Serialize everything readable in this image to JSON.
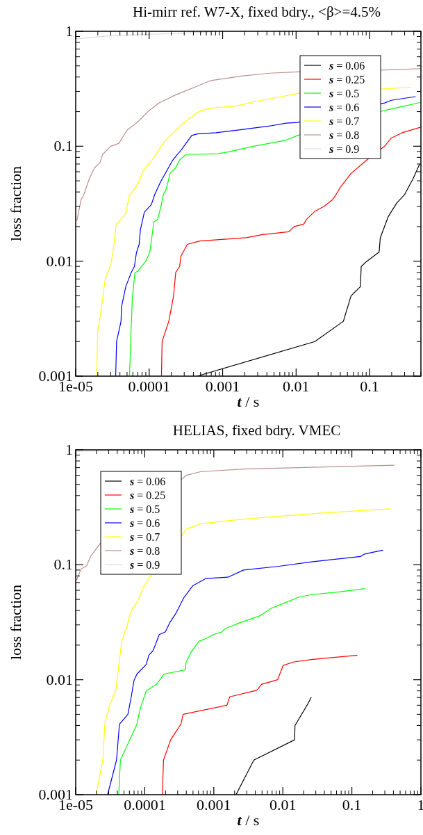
{
  "chart_data": [
    {
      "type": "line",
      "title": "Hi-mirr ref. W7-X, fixed bdry., <β>=4.5%",
      "xlabel": "t / s",
      "ylabel": "loss fraction",
      "log": "xy",
      "legend": "top right",
      "xlim": [
        1e-05,
        0.5
      ],
      "ylim": [
        0.001,
        1
      ],
      "xticks": [
        {
          "value": 1e-05,
          "label": "1e-05"
        },
        0.0001,
        0.001,
        0.01,
        0.1
      ],
      "yticks": [
        0.001,
        0.01,
        0.1,
        1
      ],
      "series": [
        {
          "name": "s = 0.06",
          "color": "#000000",
          "x": [
            0.00045,
            0.018,
            0.044,
            0.051,
            0.056,
            0.075,
            0.077,
            0.092,
            0.135,
            0.14,
            0.18,
            0.234,
            0.3,
            0.39,
            0.48
          ],
          "values": [
            0.001,
            0.002,
            0.003,
            0.0041,
            0.005,
            0.006,
            0.009,
            0.01,
            0.012,
            0.016,
            0.0245,
            0.032,
            0.038,
            0.052,
            0.07
          ]
        },
        {
          "name": "s = 0.25",
          "color": "#ff0000",
          "x": [
            0.000147,
            0.00015,
            0.000185,
            0.000215,
            0.00023,
            0.00026,
            0.00027,
            0.00033,
            0.00049,
            0.0021,
            0.0034,
            0.0079,
            0.0094,
            0.0127,
            0.0138,
            0.0178,
            0.024,
            0.031,
            0.035,
            0.04,
            0.056,
            0.092,
            0.16,
            0.198,
            0.278,
            0.49
          ],
          "values": [
            0.001,
            0.002,
            0.003,
            0.005,
            0.008,
            0.009,
            0.011,
            0.014,
            0.015,
            0.016,
            0.017,
            0.018,
            0.02,
            0.021,
            0.023,
            0.027,
            0.03,
            0.034,
            0.038,
            0.044,
            0.058,
            0.076,
            0.1,
            0.118,
            0.131,
            0.146
          ]
        },
        {
          "name": "s = 0.5",
          "color": "#00ff00",
          "x": [
            5.4e-05,
            5.6e-05,
            5.9e-05,
            6.4e-05,
            7e-05,
            9e-05,
            0.000102,
            0.000116,
            0.00013,
            0.000143,
            0.000156,
            0.00017,
            0.000193,
            0.00023,
            0.00026,
            0.00032,
            0.00041,
            0.00088,
            0.00124,
            0.00265,
            0.0073,
            0.0105,
            0.16,
            0.255,
            0.49
          ],
          "values": [
            0.001,
            0.002,
            0.0048,
            0.0079,
            0.0082,
            0.01,
            0.012,
            0.022,
            0.023,
            0.029,
            0.038,
            0.042,
            0.058,
            0.065,
            0.076,
            0.085,
            0.085,
            0.086,
            0.0897,
            0.1,
            0.113,
            0.124,
            0.205,
            0.219,
            0.24
          ]
        },
        {
          "name": "s = 0.6",
          "color": "#0000ff",
          "x": [
            3.5e-05,
            3.6e-05,
            4.14e-05,
            4.2e-05,
            4.8e-05,
            5.66e-05,
            6.3e-05,
            6.7e-05,
            7.3e-05,
            7.6e-05,
            8.6e-05,
            0.000107,
            0.000119,
            0.000143,
            0.00021,
            0.00027,
            0.00038,
            0.00045,
            0.00081,
            0.0016,
            0.0044,
            0.0073,
            0.0105,
            0.16,
            0.198,
            0.42
          ],
          "values": [
            0.001,
            0.002,
            0.003,
            0.004,
            0.006,
            0.0079,
            0.009,
            0.0118,
            0.014,
            0.0188,
            0.0267,
            0.031,
            0.038,
            0.049,
            0.076,
            0.092,
            0.124,
            0.128,
            0.131,
            0.138,
            0.15,
            0.159,
            0.161,
            0.238,
            0.251,
            0.27
          ]
        },
        {
          "name": "s = 0.7",
          "color": "#ffff00",
          "x": [
            1.93e-05,
            2e-05,
            2.14e-05,
            2.33e-05,
            2.53e-05,
            3e-05,
            3.27e-05,
            3.55e-05,
            3.87e-05,
            4.8e-05,
            5.4e-05,
            5.9e-05,
            7e-05,
            8.3e-05,
            0.000116,
            0.000163,
            0.00023,
            0.00032,
            0.00049,
            0.00069,
            0.0016,
            0.0027,
            0.0067,
            0.0105,
            0.16,
            0.358
          ],
          "values": [
            0.001,
            0.0025,
            0.0032,
            0.0048,
            0.0071,
            0.0093,
            0.0128,
            0.021,
            0.022,
            0.026,
            0.038,
            0.04,
            0.047,
            0.061,
            0.08,
            0.111,
            0.138,
            0.167,
            0.202,
            0.214,
            0.225,
            0.244,
            0.272,
            0.288,
            0.315,
            0.326
          ]
        },
        {
          "name": "s = 0.8",
          "color": "#bc8f8f",
          "x": [
            1.04e-05,
            1.18e-05,
            1.29e-05,
            1.53e-05,
            1.81e-05,
            2.14e-05,
            2.33e-05,
            3e-05,
            3.87e-05,
            5e-05,
            7e-05,
            9.8e-05,
            0.000137,
            0.00023,
            0.00045,
            0.00069,
            0.0019,
            0.0044,
            0.0105,
            0.16,
            0.49
          ],
          "values": [
            0.0226,
            0.034,
            0.038,
            0.052,
            0.065,
            0.072,
            0.085,
            0.1,
            0.106,
            0.138,
            0.163,
            0.202,
            0.238,
            0.28,
            0.333,
            0.373,
            0.409,
            0.432,
            0.444,
            0.461,
            0.473
          ]
        },
        {
          "name": "s = 0.9",
          "color": "#dcdcdc",
          "x": [
            1.04e-05,
            2.75e-05,
            9.8e-05,
            0.00041,
            0.00069
          ],
          "values": [
            0.86,
            0.912,
            0.94,
            0.97,
            0.99
          ]
        }
      ]
    },
    {
      "type": "line",
      "title": "HELIAS, fixed bdry. VMEC",
      "xlabel": "t / s",
      "ylabel": "loss fraction",
      "log": "xy",
      "legend": "top left",
      "xlim": [
        1e-05,
        1
      ],
      "ylim": [
        0.001,
        1
      ],
      "xticks": [
        {
          "value": 1e-05,
          "label": "1e-05"
        },
        0.0001,
        0.001,
        0.01,
        0.1,
        1
      ],
      "yticks": [
        0.001,
        0.01,
        0.1,
        1
      ],
      "series": [
        {
          "name": "s = 0.06",
          "color": "#000000",
          "x": [
            0.0021,
            0.0038,
            0.0148,
            0.015,
            0.0228,
            0.0257
          ],
          "values": [
            0.001,
            0.002,
            0.003,
            0.004,
            0.0061,
            0.007
          ]
        },
        {
          "name": "s = 0.25",
          "color": "#ff0000",
          "x": [
            0.00018,
            0.000187,
            0.000237,
            0.000334,
            0.00036,
            0.00155,
            0.0017,
            0.0042,
            0.0049,
            0.0084,
            0.0101,
            0.0145,
            0.026,
            0.119
          ],
          "values": [
            0.001,
            0.002,
            0.003,
            0.0041,
            0.005,
            0.006,
            0.0071,
            0.0081,
            0.0091,
            0.01,
            0.0133,
            0.0143,
            0.015,
            0.0163
          ]
        },
        {
          "name": "s = 0.5",
          "color": "#00ff00",
          "x": [
            4.2e-05,
            4.44e-05,
            7.7e-05,
            8.6e-05,
            0.000105,
            0.00015,
            0.00019,
            0.00039,
            0.000394,
            0.00047,
            0.00061,
            0.00077,
            0.001,
            0.0013,
            0.00144,
            0.0023,
            0.0047,
            0.0067,
            0.0101,
            0.0166,
            0.026,
            0.065,
            0.152
          ],
          "values": [
            0.001,
            0.002,
            0.0041,
            0.0056,
            0.008,
            0.0092,
            0.0112,
            0.0122,
            0.014,
            0.0174,
            0.0216,
            0.0228,
            0.0248,
            0.026,
            0.0277,
            0.031,
            0.036,
            0.0416,
            0.046,
            0.052,
            0.055,
            0.058,
            0.062
          ]
        },
        {
          "name": "s = 0.6",
          "color": "#0000ff",
          "x": [
            2.9e-05,
            3.9e-05,
            4.3e-05,
            5.7e-05,
            6.4e-05,
            7e-05,
            7.7e-05,
            0.000105,
            0.000115,
            0.000131,
            0.000144,
            0.000162,
            0.000198,
            0.000233,
            0.000284,
            0.00037,
            0.0005,
            0.00077,
            0.0016,
            0.0027,
            0.0088,
            0.026,
            0.133,
            0.152,
            0.28
          ],
          "values": [
            0.001,
            0.002,
            0.0041,
            0.005,
            0.0072,
            0.0099,
            0.0112,
            0.0136,
            0.0164,
            0.0178,
            0.0204,
            0.0247,
            0.026,
            0.0317,
            0.038,
            0.052,
            0.066,
            0.076,
            0.078,
            0.09,
            0.097,
            0.106,
            0.118,
            0.124,
            0.134
          ]
        },
        {
          "name": "s = 0.7",
          "color": "#ffff00",
          "x": [
            1.97e-05,
            2.47e-05,
            2.65e-05,
            3.1e-05,
            3.8e-05,
            4.25e-05,
            4.65e-05,
            5.6e-05,
            6.1e-05,
            6.7e-05,
            8e-05,
            9.6e-05,
            0.000115,
            0.0004,
            0.00064,
            0.0017,
            0.0067,
            0.041,
            0.36
          ],
          "values": [
            0.001,
            0.002,
            0.0042,
            0.006,
            0.008,
            0.014,
            0.0216,
            0.03,
            0.037,
            0.0416,
            0.049,
            0.064,
            0.076,
            0.204,
            0.227,
            0.243,
            0.261,
            0.283,
            0.307
          ]
        },
        {
          "name": "s = 0.8",
          "color": "#bc8f8f",
          "x": [
            1.03e-05,
            1.2e-05,
            1.44e-05,
            1.64e-05,
            2.3e-05,
            0.0004,
            0.00064,
            0.0027,
            0.0166,
            0.101,
            0.41
          ],
          "values": [
            0.074,
            0.092,
            0.098,
            0.118,
            0.155,
            0.6,
            0.645,
            0.68,
            0.7,
            0.72,
            0.735
          ]
        },
        {
          "name": "s = 0.9",
          "color": "#dcdcdc",
          "x": [
            1.03e-05,
            4e-05,
            0.0001
          ],
          "values": [
            0.97,
            0.985,
            0.995
          ]
        }
      ]
    }
  ]
}
